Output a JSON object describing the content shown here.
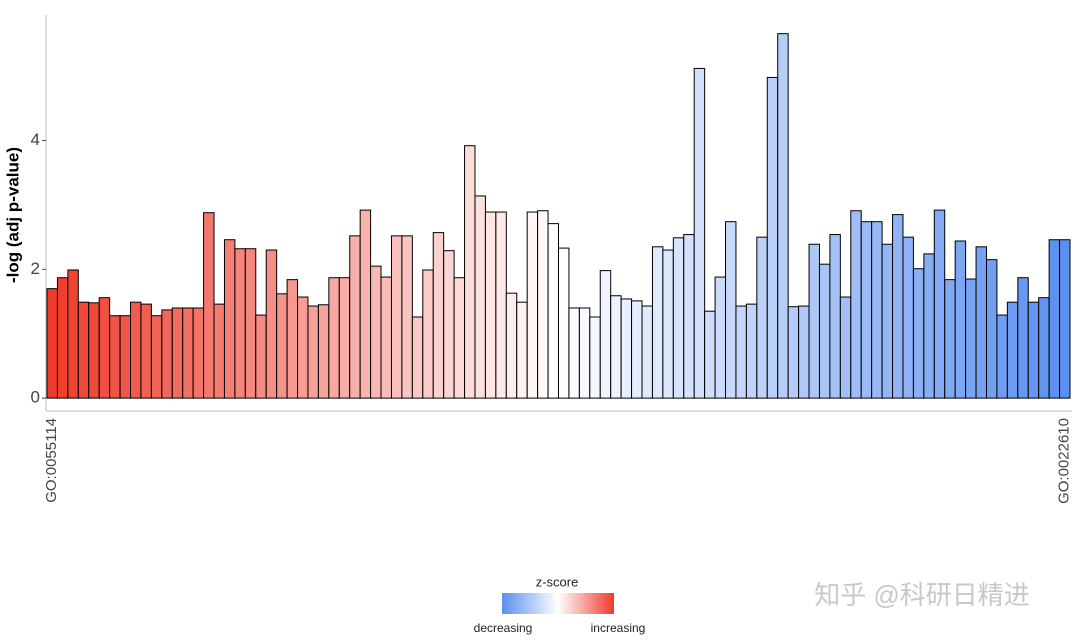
{
  "chart_data": {
    "type": "bar",
    "y_label": "-log (adj p-value)",
    "categories": [
      "GO:0055114",
      null,
      null,
      null,
      null,
      null,
      null,
      null,
      null,
      null,
      null,
      null,
      null,
      null,
      null,
      null,
      null,
      null,
      null,
      null,
      null,
      null,
      null,
      null,
      null,
      null,
      null,
      null,
      null,
      null,
      null,
      null,
      null,
      null,
      null,
      null,
      null,
      null,
      null,
      null,
      null,
      null,
      null,
      null,
      null,
      null,
      null,
      null,
      null,
      null,
      null,
      null,
      null,
      null,
      null,
      null,
      null,
      null,
      null,
      null,
      null,
      null,
      null,
      null,
      null,
      null,
      null,
      null,
      null,
      null,
      null,
      null,
      null,
      null,
      null,
      null,
      null,
      null,
      null,
      null,
      null,
      null,
      null,
      null,
      null,
      null,
      null,
      null,
      null,
      null,
      null,
      null,
      null,
      null,
      null,
      null,
      null,
      "GO:0022610"
    ],
    "values": [
      1.7,
      1.87,
      1.99,
      1.49,
      1.48,
      1.56,
      1.28,
      1.28,
      1.49,
      1.46,
      1.28,
      1.37,
      1.4,
      1.4,
      1.4,
      2.88,
      1.46,
      2.46,
      2.32,
      2.32,
      1.29,
      2.3,
      1.62,
      1.84,
      1.57,
      1.43,
      1.45,
      1.87,
      1.87,
      2.52,
      2.92,
      2.05,
      1.88,
      2.52,
      2.52,
      1.26,
      1.99,
      2.57,
      2.29,
      1.87,
      3.92,
      3.14,
      2.89,
      2.89,
      1.63,
      1.49,
      2.89,
      2.91,
      2.71,
      2.33,
      1.4,
      1.4,
      1.26,
      1.98,
      1.59,
      1.54,
      1.51,
      1.43,
      2.35,
      2.3,
      2.49,
      2.54,
      5.12,
      1.35,
      1.88,
      2.74,
      1.43,
      1.46,
      2.5,
      4.98,
      5.66,
      1.42,
      1.43,
      2.39,
      2.08,
      2.54,
      1.57,
      2.91,
      2.74,
      2.74,
      2.39,
      2.85,
      2.5,
      2.01,
      2.24,
      2.92,
      1.84,
      2.44,
      1.85,
      2.35,
      2.15,
      1.29,
      1.49,
      1.87,
      1.49,
      1.56,
      2.46,
      2.46
    ],
    "ylim": [
      -0.2,
      5.95
    ],
    "yticks": [
      0,
      2,
      4
    ],
    "legend": {
      "title": "z-score",
      "colors": [
        "#5b8ff0",
        "#ffffff",
        "#ee3b2b"
      ],
      "low": "decreasing",
      "high": "increasing"
    },
    "watermark": "知乎 @科研日精进"
  }
}
